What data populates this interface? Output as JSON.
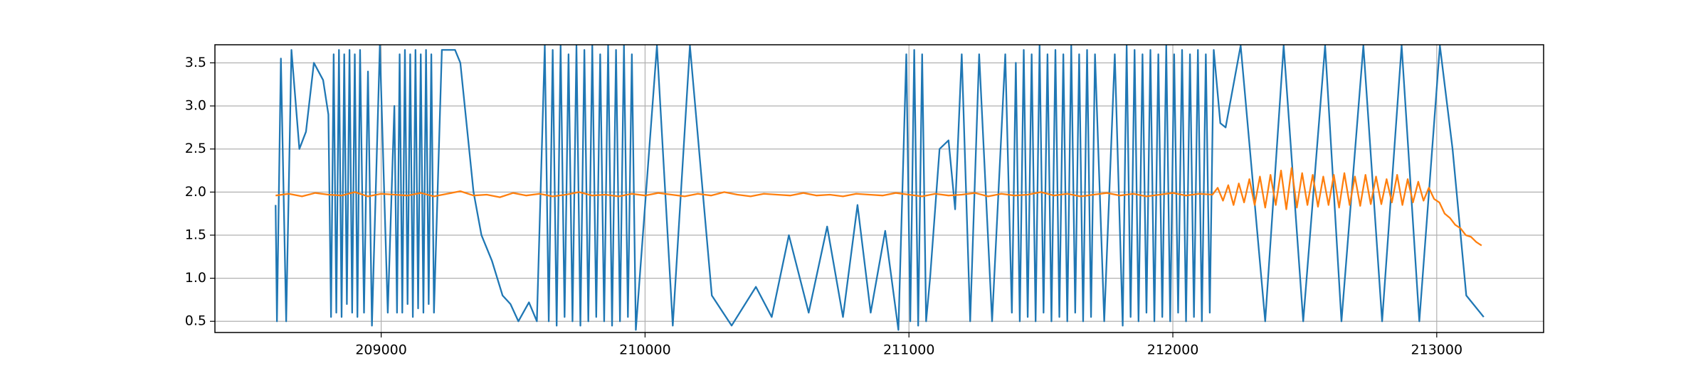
{
  "chart_data": {
    "type": "line",
    "xlim": [
      208370,
      213405
    ],
    "ylim": [
      0.37,
      3.71
    ],
    "xticks": [
      209000,
      210000,
      211000,
      212000,
      213000
    ],
    "yticks": [
      0.5,
      {
        "value": 1,
        "label": "1.0"
      },
      1.5,
      {
        "value": 2,
        "label": "2.0"
      },
      2.5,
      {
        "value": 3,
        "label": "3.0"
      },
      3.5
    ],
    "grid": true,
    "series": [
      {
        "color": "#1f77b4",
        "x": [
          208600,
          208605,
          208620,
          208640,
          208660,
          208690,
          208715,
          208745,
          208780,
          208800,
          208810,
          208820,
          208830,
          208840,
          208850,
          208860,
          208870,
          208880,
          208890,
          208900,
          208910,
          208920,
          208935,
          208950,
          208965,
          208995,
          209025,
          209050,
          209060,
          209070,
          209080,
          209090,
          209100,
          209110,
          209120,
          209130,
          209140,
          209150,
          209160,
          209170,
          209180,
          209190,
          209200,
          209230,
          209280,
          209300,
          209350,
          209380,
          209420,
          209460,
          209490,
          209520,
          209560,
          209590,
          209620,
          209635,
          209650,
          209665,
          209680,
          209695,
          209710,
          209725,
          209740,
          209755,
          209770,
          209785,
          209800,
          209815,
          209830,
          209845,
          209860,
          209875,
          209890,
          209905,
          209920,
          209935,
          209950,
          209965,
          210045,
          210105,
          210170,
          210253,
          210328,
          210420,
          210480,
          210545,
          210620,
          210690,
          210750,
          210805,
          210855,
          210910,
          210960,
          210990,
          211005,
          211020,
          211035,
          211050,
          211065,
          211080,
          211116,
          211150,
          211175,
          211200,
          211232,
          211266,
          211315,
          211365,
          211390,
          211405,
          211420,
          211435,
          211450,
          211465,
          211480,
          211495,
          211510,
          211525,
          211540,
          211555,
          211570,
          211585,
          211600,
          211615,
          211630,
          211645,
          211660,
          211675,
          211690,
          211705,
          211740,
          211780,
          211810,
          211825,
          211840,
          211855,
          211870,
          211885,
          211900,
          211915,
          211930,
          211945,
          211960,
          211975,
          211990,
          212005,
          212020,
          212035,
          212050,
          212065,
          212080,
          212095,
          212110,
          212125,
          212140,
          212155,
          212180,
          212200,
          212257,
          212350,
          212420,
          212494,
          212577,
          212639,
          212722,
          212793,
          212867,
          212934,
          213012,
          213060,
          213112,
          213178
        ],
        "values": [
          1.85,
          0.5,
          3.55,
          0.5,
          3.65,
          2.5,
          2.7,
          3.5,
          3.3,
          2.9,
          0.55,
          3.6,
          0.6,
          3.65,
          0.55,
          3.6,
          0.7,
          3.65,
          0.6,
          3.6,
          0.55,
          3.65,
          0.6,
          3.4,
          0.45,
          3.7,
          0.6,
          3.0,
          0.6,
          3.6,
          0.6,
          3.65,
          0.7,
          3.6,
          0.55,
          3.65,
          0.65,
          3.6,
          0.6,
          3.65,
          0.7,
          3.6,
          0.6,
          3.65,
          3.65,
          3.5,
          2.0,
          1.5,
          1.2,
          0.8,
          0.7,
          0.5,
          0.72,
          0.5,
          3.7,
          0.5,
          3.65,
          0.45,
          3.7,
          0.55,
          3.6,
          0.5,
          3.7,
          0.45,
          3.65,
          0.5,
          3.7,
          0.55,
          3.6,
          0.5,
          3.7,
          0.45,
          3.65,
          0.5,
          3.7,
          0.55,
          3.6,
          0.4,
          3.7,
          0.45,
          3.7,
          0.8,
          0.45,
          0.9,
          0.55,
          1.5,
          0.6,
          1.6,
          0.55,
          1.85,
          0.6,
          1.55,
          0.4,
          3.6,
          0.5,
          3.65,
          0.45,
          3.6,
          0.5,
          1.0,
          2.5,
          2.6,
          1.8,
          3.6,
          0.5,
          3.6,
          0.5,
          3.6,
          0.6,
          3.5,
          0.5,
          3.65,
          0.55,
          3.6,
          0.5,
          3.7,
          0.6,
          3.6,
          0.5,
          3.65,
          0.55,
          3.6,
          0.5,
          3.7,
          0.6,
          3.6,
          0.5,
          3.65,
          0.55,
          3.6,
          0.5,
          3.6,
          0.45,
          3.7,
          0.55,
          3.65,
          0.5,
          3.6,
          0.6,
          3.65,
          0.5,
          3.6,
          0.55,
          3.7,
          0.5,
          3.6,
          0.6,
          3.65,
          0.5,
          3.6,
          0.55,
          3.65,
          0.5,
          3.6,
          0.6,
          3.65,
          2.8,
          2.75,
          3.7,
          0.5,
          3.7,
          0.5,
          3.7,
          0.5,
          3.7,
          0.5,
          3.7,
          0.5,
          3.7,
          2.5,
          0.8,
          0.55
        ]
      },
      {
        "color": "#ff7f0e",
        "x": [
          208600,
          208650,
          208700,
          208750,
          208800,
          208850,
          208900,
          208950,
          209000,
          209050,
          209100,
          209150,
          209200,
          209250,
          209300,
          209350,
          209400,
          209450,
          209500,
          209550,
          209600,
          209650,
          209700,
          209750,
          209800,
          209850,
          209900,
          209950,
          210000,
          210050,
          210100,
          210150,
          210200,
          210250,
          210300,
          210350,
          210400,
          210450,
          210500,
          210550,
          210600,
          210650,
          210700,
          210750,
          210800,
          210850,
          210900,
          210950,
          211000,
          211050,
          211100,
          211150,
          211200,
          211250,
          211300,
          211350,
          211400,
          211450,
          211500,
          211550,
          211600,
          211650,
          211700,
          211750,
          211800,
          211850,
          211900,
          211950,
          212000,
          212050,
          212100,
          212150,
          212170,
          212190,
          212210,
          212230,
          212250,
          212270,
          212290,
          212310,
          212330,
          212350,
          212370,
          212390,
          212410,
          212430,
          212450,
          212470,
          212490,
          212510,
          212530,
          212550,
          212570,
          212590,
          212610,
          212630,
          212650,
          212670,
          212690,
          212710,
          212730,
          212750,
          212770,
          212790,
          212810,
          212830,
          212850,
          212870,
          212890,
          212910,
          212930,
          212950,
          212970,
          212990,
          213010,
          213030,
          213050,
          213070,
          213090,
          213110,
          213130,
          213150,
          213170
        ],
        "values": [
          1.96,
          1.98,
          1.95,
          1.99,
          1.97,
          1.96,
          2.0,
          1.95,
          1.98,
          1.97,
          1.96,
          1.99,
          1.95,
          1.98,
          2.01,
          1.96,
          1.97,
          1.94,
          1.99,
          1.96,
          1.98,
          1.95,
          1.97,
          2.0,
          1.96,
          1.97,
          1.95,
          1.98,
          1.96,
          1.99,
          1.97,
          1.95,
          1.98,
          1.96,
          2.0,
          1.97,
          1.95,
          1.98,
          1.97,
          1.96,
          1.99,
          1.96,
          1.97,
          1.95,
          1.98,
          1.97,
          1.96,
          1.99,
          1.97,
          1.95,
          1.98,
          1.96,
          1.97,
          1.99,
          1.95,
          1.98,
          1.96,
          1.97,
          2.0,
          1.96,
          1.98,
          1.95,
          1.97,
          1.99,
          1.96,
          1.98,
          1.95,
          1.97,
          1.99,
          1.96,
          1.98,
          1.97,
          2.05,
          1.9,
          2.08,
          1.85,
          2.1,
          1.88,
          2.15,
          1.85,
          2.18,
          1.82,
          2.2,
          1.85,
          2.25,
          1.8,
          2.28,
          1.82,
          2.22,
          1.85,
          2.2,
          1.83,
          2.18,
          1.85,
          2.2,
          1.82,
          2.22,
          1.85,
          2.18,
          1.84,
          2.2,
          1.86,
          2.18,
          1.86,
          2.15,
          1.88,
          2.2,
          1.85,
          2.15,
          1.88,
          2.12,
          1.9,
          2.05,
          1.92,
          1.88,
          1.75,
          1.7,
          1.62,
          1.58,
          1.5,
          1.48,
          1.42,
          1.38
        ]
      }
    ]
  }
}
